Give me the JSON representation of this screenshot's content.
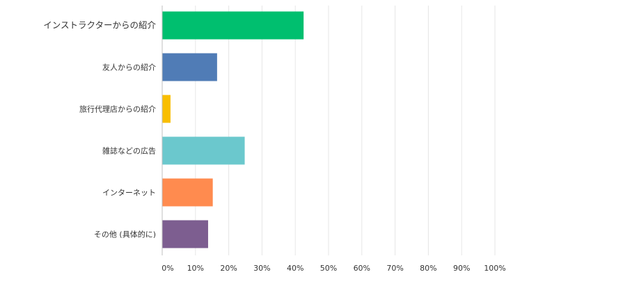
{
  "chart_data": {
    "type": "bar",
    "orientation": "horizontal",
    "categories": [
      "インストラクターからの紹介",
      "友人からの紹介",
      "旅行代理店からの紹介",
      "雑誌などの広告",
      "インターネット",
      "その他 (具体的に)"
    ],
    "values": [
      42.5,
      16.5,
      2.5,
      24.8,
      15.2,
      13.8
    ],
    "colors": [
      "#00bf6f",
      "#507cb6",
      "#f9be00",
      "#6bc8cd",
      "#ff8b4f",
      "#7d5e90"
    ],
    "xlim": [
      0,
      100
    ],
    "x_ticks": [
      "0%",
      "10%",
      "20%",
      "30%",
      "40%",
      "50%",
      "60%",
      "70%",
      "80%",
      "90%",
      "100%"
    ],
    "grid": "vertical",
    "legend": "none"
  }
}
